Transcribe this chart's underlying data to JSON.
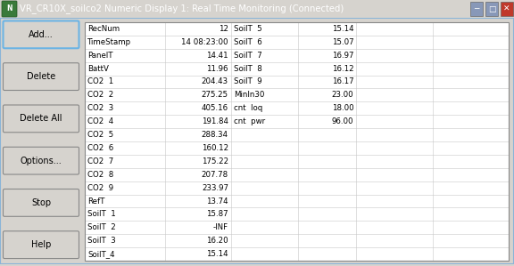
{
  "title": "VR_CR10X_soilco2 Numeric Display 1: Real Time Monitoring (Connected)",
  "title_bg": "#4a6fa5",
  "title_fg": "#ffffff",
  "title_icon_bg": "#3a7a3a",
  "window_bg": "#d6d3ce",
  "table_bg": "#ffffff",
  "grid_color": "#c8c8c8",
  "button_bg": "#d6d3ce",
  "button_border": "#888888",
  "button_highlight": "#6cb4e4",
  "col1_rows": [
    [
      "RecNum",
      "12"
    ],
    [
      "TimeStamp",
      "14 08:23:00"
    ],
    [
      "PanelT",
      "14.41"
    ],
    [
      "BattV",
      "11.96"
    ],
    [
      "CO2  1",
      "204.43"
    ],
    [
      "CO2  2",
      "275.25"
    ],
    [
      "CO2  3",
      "405.16"
    ],
    [
      "CO2  4",
      "191.84"
    ],
    [
      "CO2  5",
      "288.34"
    ],
    [
      "CO2  6",
      "160.12"
    ],
    [
      "CO2  7",
      "175.22"
    ],
    [
      "CO2  8",
      "207.78"
    ],
    [
      "CO2  9",
      "233.97"
    ],
    [
      "RefT",
      "13.74"
    ],
    [
      "SoilT  1",
      "15.87"
    ],
    [
      "SoilT  2",
      "-INF"
    ],
    [
      "SoilT  3",
      "16.20"
    ],
    [
      "SoilT_4",
      "15.14"
    ]
  ],
  "col2_rows": [
    [
      "SoilT  5",
      "15.14"
    ],
    [
      "SoilT  6",
      "15.07"
    ],
    [
      "SoilT  7",
      "16.97"
    ],
    [
      "SoilT  8",
      "16.12"
    ],
    [
      "SoilT  9",
      "16.17"
    ],
    [
      "MinIn30",
      "23.00"
    ],
    [
      "cnt  loq",
      "18.00"
    ],
    [
      "cnt  pwr",
      "96.00"
    ],
    [
      "",
      ""
    ],
    [
      "",
      ""
    ],
    [
      "",
      ""
    ],
    [
      "",
      ""
    ],
    [
      "",
      ""
    ],
    [
      "",
      ""
    ],
    [
      "",
      ""
    ],
    [
      "",
      ""
    ],
    [
      "",
      ""
    ],
    [
      "",
      ""
    ]
  ],
  "buttons": [
    "Add...",
    "Delete",
    "Delete All",
    "Options...",
    "Stop",
    "Help"
  ],
  "btn_add_highlight": true
}
